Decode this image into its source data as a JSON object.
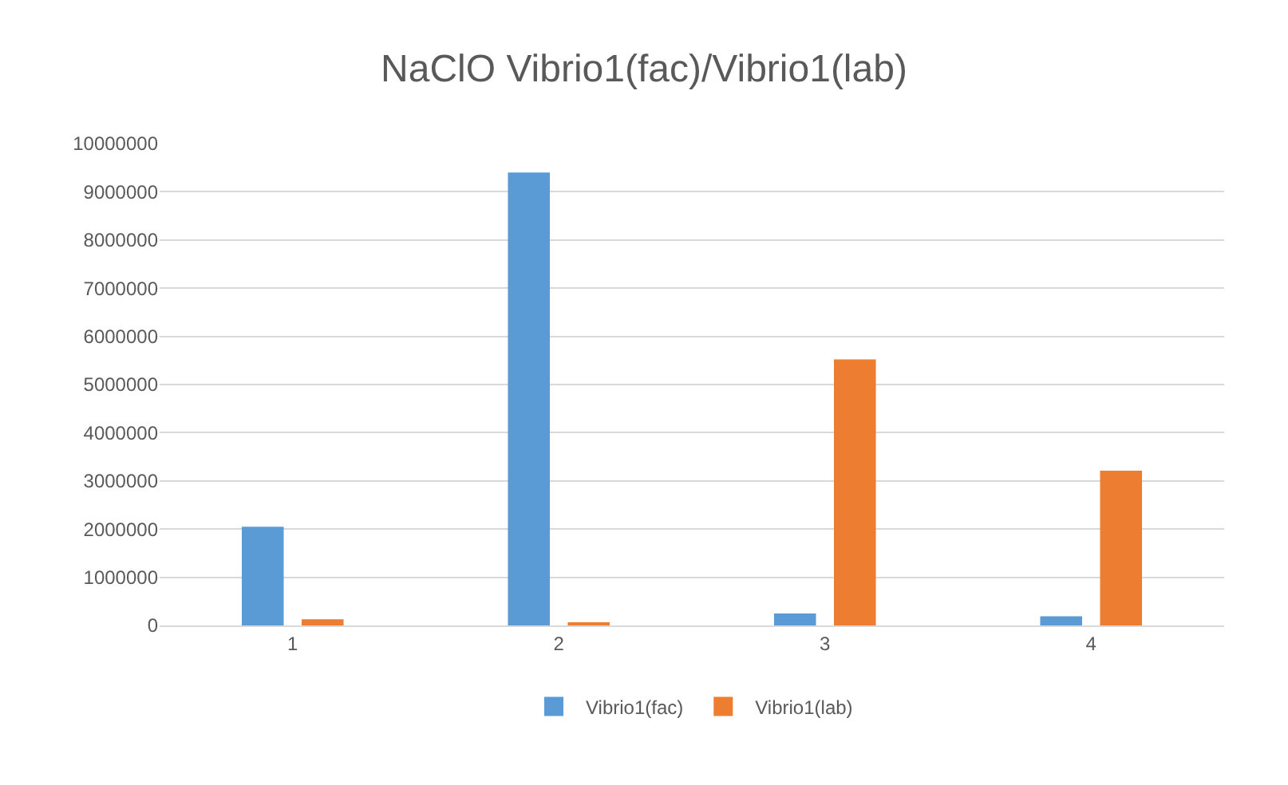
{
  "chart_data": {
    "type": "bar",
    "title": "NaClO Vibrio1(fac)/Vibrio1(lab)",
    "categories": [
      "1",
      "2",
      "3",
      "4"
    ],
    "series": [
      {
        "name": "Vibrio1(fac)",
        "color": "#5b9bd5",
        "values": [
          2050000,
          9400000,
          250000,
          190000
        ]
      },
      {
        "name": "Vibrio1(lab)",
        "color": "#ed7d31",
        "values": [
          130000,
          60000,
          5520000,
          3210000
        ]
      }
    ],
    "ylim": [
      0,
      10000000
    ],
    "yticks": [
      0,
      1000000,
      2000000,
      3000000,
      4000000,
      5000000,
      6000000,
      7000000,
      8000000,
      9000000,
      10000000
    ],
    "grid": "y",
    "legend": "bottom"
  }
}
